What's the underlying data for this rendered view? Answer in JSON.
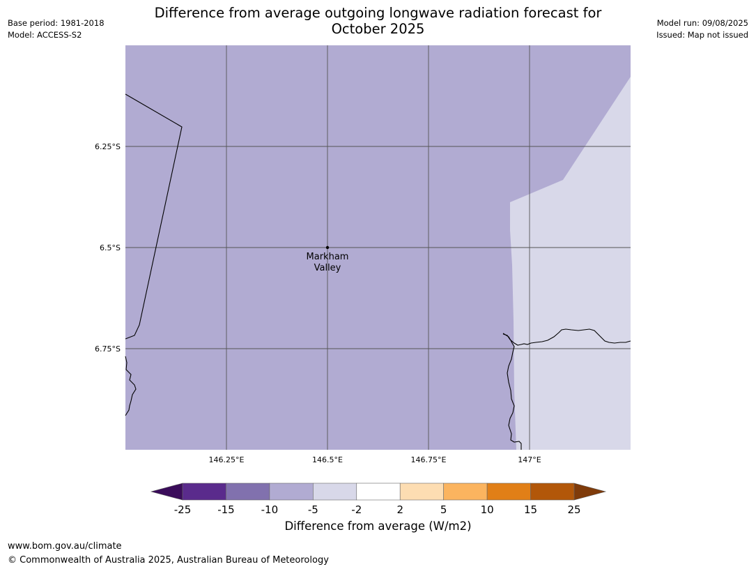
{
  "title": "Difference from average outgoing longwave radiation forecast for October 2025",
  "meta_left": {
    "base_period": "Base period: 1981-2018",
    "model": "Model: ACCESS-S2"
  },
  "meta_right": {
    "model_run": "Model run: 09/08/2025",
    "issued": "Issued: Map not issued"
  },
  "map": {
    "background_color": "#b1abd2",
    "fill_color_region": "#d8d8e9",
    "gridline_color": "#555555",
    "x_ticks": [
      {
        "value": 146.25,
        "label": "146.25°E"
      },
      {
        "value": 146.5,
        "label": "146.5°E"
      },
      {
        "value": 146.75,
        "label": "146.75°E"
      },
      {
        "value": 147.0,
        "label": "147°E"
      }
    ],
    "y_ticks": [
      {
        "value": -6.25,
        "label": "6.25°S"
      },
      {
        "value": -6.5,
        "label": "6.5°S"
      },
      {
        "value": -6.75,
        "label": "6.75°S"
      }
    ],
    "place": {
      "name_line1": "Markham",
      "name_line2": "Valley",
      "lon": 146.5,
      "lat": -6.5
    }
  },
  "colorbar": {
    "label": "Difference from average (W/m2)",
    "ticks": [
      "-25",
      "-15",
      "-10",
      "-5",
      "-2",
      "2",
      "5",
      "10",
      "15",
      "25"
    ],
    "colors": [
      "#5a2b8c",
      "#8171ae",
      "#b1abd2",
      "#d8d8e9",
      "#ffffff",
      "#fdddb2",
      "#fbb45f",
      "#e17f17",
      "#b25709"
    ],
    "extend_low_color": "#3a0c5a",
    "extend_high_color": "#7f3b0a"
  },
  "footer": {
    "url": "www.bom.gov.au/climate",
    "copyright": "© Commonwealth of Australia 2025, Australian Bureau of Meteorology"
  }
}
